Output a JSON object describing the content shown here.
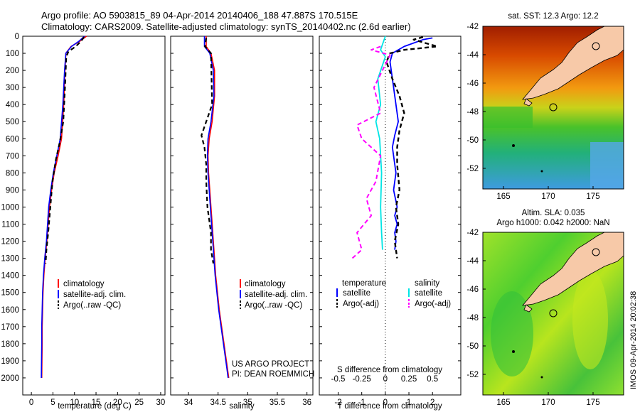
{
  "title_line1": "Argo profile: AO 5903815_89 04-Apr-2014 20140406_188 47.887S 170.515E",
  "title_line2": "Climatology: CARS2009. Satellite-adjusted climatology: synTS_20140402.nc (2.6d earlier)",
  "map_sst_title": "sat. SST: 12.3 Argo: 12.2",
  "map_sla_title1": "Altim. SLA: 0.035",
  "map_sla_title2": "Argo h1000: 0.042 h2000: NaN",
  "stamp": "IMOS 09-Apr-2014 20:02:38",
  "credit1": "US ARGO PROJECT",
  "credit2": "PI: DEAN ROEMMICH",
  "colors": {
    "clim": "#ff0000",
    "sat": "#0000ff",
    "argo": "#000000",
    "sat_s": "#00e5e5",
    "argo_s": "#ff00ff",
    "land": "#f7c9a8"
  },
  "chart_data": [
    {
      "type": "line",
      "xlabel": "temperature (deg C)",
      "ylabel": "",
      "xlim": [
        -2,
        31
      ],
      "ylim": [
        2100,
        0
      ],
      "xticks": [
        0,
        5,
        10,
        15,
        20,
        25,
        30
      ],
      "yticks": [
        0,
        100,
        200,
        300,
        400,
        500,
        600,
        700,
        800,
        900,
        1000,
        1100,
        1200,
        1300,
        1400,
        1500,
        1600,
        1700,
        1800,
        1900,
        2000
      ],
      "legend": [
        "climatology",
        "satellite-adj. clim.",
        "Argo(..raw -QC)"
      ],
      "series": [
        {
          "name": "climatology",
          "x": [
            12.8,
            11.2,
            9.2,
            8.0,
            7.8,
            7.5,
            7.0,
            6.2,
            5.3,
            4.7,
            4.2,
            3.6,
            3.2,
            2.9,
            2.7,
            2.6,
            2.5,
            2.5,
            2.4
          ],
          "y": [
            0,
            30,
            60,
            100,
            200,
            400,
            600,
            700,
            800,
            900,
            1000,
            1200,
            1300,
            1400,
            1500,
            1600,
            1700,
            1800,
            2000
          ]
        },
        {
          "name": "satellite-adj. clim.",
          "x": [
            12.3,
            11.0,
            9.3,
            8.0,
            7.7,
            7.3,
            6.7,
            5.9,
            5.1,
            4.5,
            4.0,
            3.5,
            3.1,
            2.8,
            2.6,
            2.5,
            2.4,
            2.4,
            2.3
          ],
          "y": [
            0,
            30,
            60,
            100,
            200,
            400,
            600,
            700,
            800,
            900,
            1000,
            1200,
            1300,
            1400,
            1500,
            1600,
            1700,
            1800,
            2000
          ]
        },
        {
          "name": "Argo(..raw -QC)",
          "x": [
            12.2,
            11.5,
            10.3,
            8.6,
            8.1,
            7.8,
            7.4,
            6.6,
            5.7,
            4.9,
            4.4,
            3.9,
            3.5,
            3.3
          ],
          "y": [
            5,
            30,
            60,
            90,
            120,
            300,
            500,
            620,
            720,
            850,
            1000,
            1150,
            1250,
            1330
          ]
        }
      ]
    },
    {
      "type": "line",
      "xlabel": "salinity",
      "ylabel": "",
      "xlim": [
        33.7,
        36.1
      ],
      "ylim": [
        2100,
        0
      ],
      "xticks": [
        34,
        34.5,
        35,
        35.5,
        36
      ],
      "legend": [
        "climatology",
        "satellite-adj. clim.",
        "Argo(..raw -QC)"
      ],
      "series": [
        {
          "name": "climatology",
          "x": [
            34.3,
            34.3,
            34.38,
            34.44,
            34.44,
            34.4,
            34.35,
            34.33,
            34.34,
            34.38,
            34.42,
            34.46,
            34.52,
            34.6,
            34.66,
            34.68
          ],
          "y": [
            0,
            60,
            100,
            200,
            350,
            500,
            600,
            700,
            800,
            1000,
            1200,
            1400,
            1600,
            1800,
            1950,
            2000
          ]
        },
        {
          "name": "satellite-adj. clim.",
          "x": [
            34.27,
            34.27,
            34.36,
            34.42,
            34.43,
            34.38,
            34.33,
            34.32,
            34.33,
            34.37,
            34.41,
            34.45,
            34.51,
            34.59,
            34.65,
            34.67
          ],
          "y": [
            0,
            60,
            100,
            200,
            350,
            500,
            600,
            700,
            800,
            1000,
            1200,
            1400,
            1600,
            1800,
            1950,
            2000
          ]
        },
        {
          "name": "Argo(..raw -QC)",
          "x": [
            34.3,
            34.28,
            34.38,
            34.4,
            34.3,
            34.22,
            34.27,
            34.3,
            34.3,
            34.32,
            34.38,
            34.38,
            34.42
          ],
          "y": [
            10,
            60,
            100,
            400,
            500,
            580,
            650,
            750,
            850,
            1000,
            1150,
            1250,
            1330
          ]
        }
      ]
    },
    {
      "type": "line",
      "xlabel": "T difference from climatology",
      "xlabel_top": "S difference from climatology",
      "xlim": [
        -2.8,
        3.2
      ],
      "ylim": [
        2100,
        0
      ],
      "xticks": [
        -2,
        -1,
        0,
        1,
        2
      ],
      "xticks_top": [
        "-0.5",
        "-0.25",
        "0",
        "0.25",
        "0.5"
      ],
      "legend_titles": [
        "temperature",
        "salinity"
      ],
      "legend": [
        "satellite",
        "Argo(-adj)",
        "satellite",
        "Argo(-adj)"
      ],
      "series": [
        {
          "name": "satellite",
          "x": [
            2.0,
            1.6,
            0.8,
            0.3,
            0.2,
            0.35,
            0.45,
            0.55,
            0.4,
            0.3,
            0.45,
            0.35,
            0.5,
            0.4,
            0.5,
            0.4,
            0.45,
            0.4
          ],
          "y": [
            10,
            20,
            60,
            100,
            150,
            300,
            400,
            500,
            580,
            650,
            800,
            900,
            1000,
            1050,
            1100,
            1150,
            1200,
            1250
          ]
        },
        {
          "name": "Argo(-adj)",
          "x": [
            1.6,
            1.2,
            2.2,
            0.8,
            0.2,
            0.05,
            0.3,
            0.6,
            0.8,
            0.6,
            0.5,
            0.5,
            0.6,
            0.45,
            0.55,
            0.4,
            0.5
          ],
          "y": [
            5,
            20,
            60,
            80,
            100,
            150,
            250,
            350,
            450,
            550,
            650,
            750,
            900,
            1000,
            1100,
            1200,
            1300
          ]
        },
        {
          "name": "satellite (S)",
          "x": [
            0.0,
            -0.05,
            0.0,
            -0.08,
            -0.05,
            -0.1,
            -0.06,
            -0.04,
            -0.05,
            -0.04,
            -0.03
          ],
          "y": [
            0,
            80,
            120,
            250,
            400,
            500,
            600,
            800,
            1000,
            1150,
            1250
          ]
        },
        {
          "name": "Argo(-adj) (S)",
          "x": [
            -0.05,
            -0.15,
            0.05,
            -0.12,
            -0.05,
            -0.3,
            -0.25,
            -0.05,
            -0.1,
            -0.2,
            -0.15,
            -0.3,
            -0.25,
            -0.35
          ],
          "y": [
            60,
            80,
            110,
            300,
            450,
            520,
            600,
            700,
            850,
            950,
            1050,
            1150,
            1250,
            1300
          ]
        }
      ]
    }
  ],
  "maps": {
    "xticks": [
      "165",
      "170",
      "175"
    ],
    "yticks": [
      "-42",
      "-44",
      "-46",
      "-48",
      "-50",
      "-52"
    ]
  }
}
